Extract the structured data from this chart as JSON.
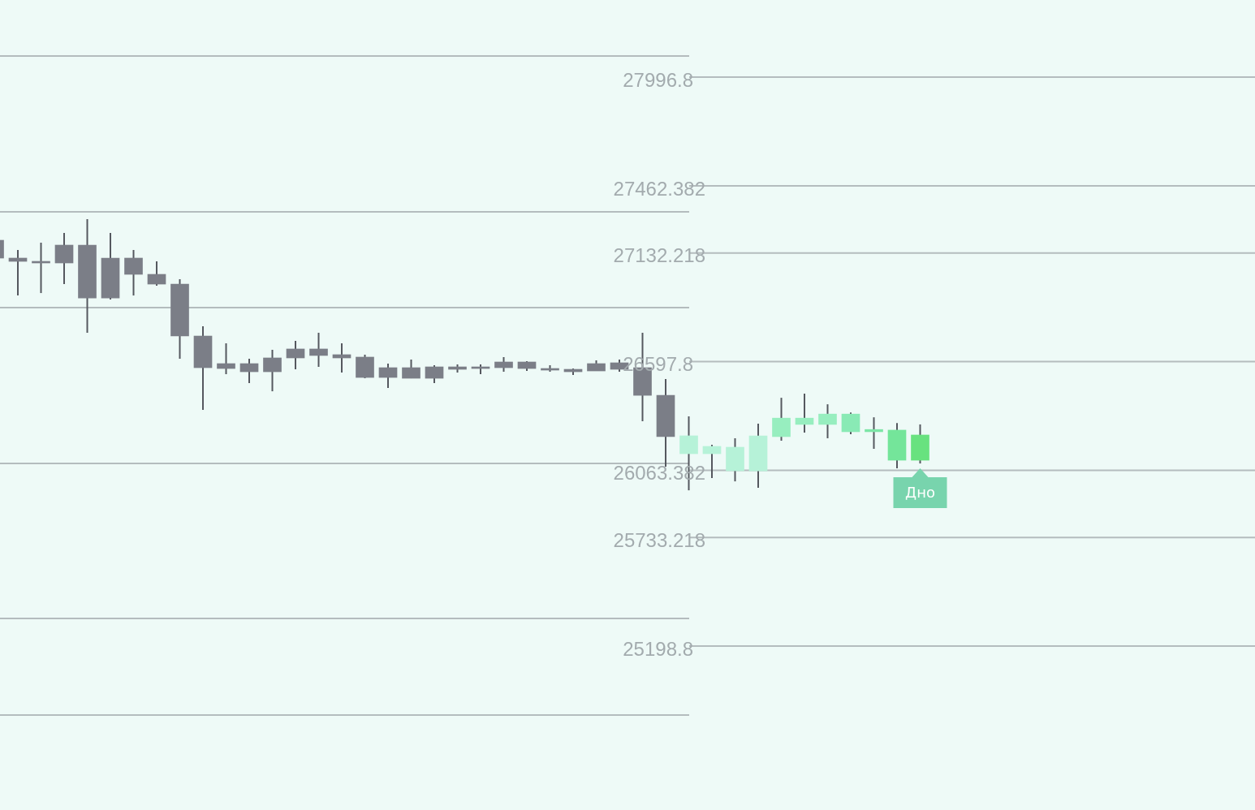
{
  "chart_data": {
    "type": "candlestick",
    "categories": [
      null,
      null,
      null,
      null,
      null,
      null,
      null,
      null,
      null,
      null,
      null,
      null,
      null,
      null,
      null,
      null,
      null,
      null,
      null,
      null,
      null,
      null,
      null,
      null,
      null,
      null,
      null,
      null,
      null,
      null,
      null,
      null,
      null,
      null,
      null,
      null,
      null,
      null,
      null,
      null,
      null
    ],
    "ohlc": [
      [
        27194.6,
        27194.6,
        27106.9,
        27106.9
      ],
      [
        27106.9,
        27146.7,
        26923,
        27090.8
      ],
      [
        27090.8,
        27182.6,
        26935,
        27082.9
      ],
      [
        27170.7,
        27230.5,
        26979,
        27082.9
      ],
      [
        27170.7,
        27298.4,
        26739.6,
        26911
      ],
      [
        27106.9,
        27230.5,
        26903,
        26911
      ],
      [
        27106.9,
        27146.7,
        26923,
        27027
      ],
      [
        27027,
        27090.8,
        26971,
        26979
      ],
      [
        26979,
        27003,
        26611.9,
        26723.6
      ],
      [
        26723.6,
        26771.5,
        26360.5,
        26568
      ],
      [
        26588,
        26687.8,
        26536,
        26564
      ],
      [
        26588,
        26611.9,
        26492,
        26548
      ],
      [
        26616,
        26656,
        26452,
        26548
      ],
      [
        26660,
        26699.7,
        26560,
        26616
      ],
      [
        26660,
        26739.6,
        26572,
        26628
      ],
      [
        26632,
        26687.8,
        26544,
        26616
      ],
      [
        26620,
        26632,
        26516,
        26520
      ],
      [
        26568,
        26588,
        26468,
        26520
      ],
      [
        26568,
        26608,
        26516,
        26516
      ],
      [
        26572,
        26580,
        26492,
        26516
      ],
      [
        26572,
        26584,
        26544,
        26560
      ],
      [
        26572,
        26584,
        26536,
        26564
      ],
      [
        26596,
        26620,
        26548,
        26568
      ],
      [
        26596,
        26600,
        26552,
        26564
      ],
      [
        26564,
        26580,
        26548,
        26556
      ],
      [
        26560,
        26564,
        26532,
        26548
      ],
      [
        26588,
        26604,
        26552,
        26552
      ],
      [
        26592,
        26608,
        26548,
        26560
      ],
      [
        26568,
        26739.6,
        26304.6,
        26432
      ],
      [
        26432,
        26512,
        26081,
        26228.7
      ],
      [
        26233,
        26328.6,
        25965,
        26145
      ],
      [
        26181,
        26189,
        26025,
        26145
      ],
      [
        26177,
        26221,
        26009,
        26061
      ],
      [
        26233,
        26293,
        25977,
        26061
      ],
      [
        26320,
        26420,
        26209,
        26229
      ],
      [
        26320,
        26440,
        26249,
        26289
      ],
      [
        26340,
        26388,
        26221,
        26289
      ],
      [
        26340,
        26348,
        26241,
        26253
      ],
      [
        26264,
        26324,
        26169,
        26253
      ],
      [
        26261,
        26296,
        26073,
        26113
      ],
      [
        26237,
        26289,
        26097,
        26113
      ]
    ],
    "colors": [
      "#7b7e87",
      "#7b7e87",
      "#7b7e87",
      "#7b7e87",
      "#7b7e87",
      "#7b7e87",
      "#7b7e87",
      "#7b7e87",
      "#7b7e87",
      "#7b7e87",
      "#7b7e87",
      "#7b7e87",
      "#7b7e87",
      "#7b7e87",
      "#7b7e87",
      "#7b7e87",
      "#7b7e87",
      "#7b7e87",
      "#7b7e87",
      "#7b7e87",
      "#7b7e87",
      "#7b7e87",
      "#7b7e87",
      "#7b7e87",
      "#7b7e87",
      "#7b7e87",
      "#7b7e87",
      "#7b7e87",
      "#7b7e87",
      "#7b7e87",
      "#b6f2d8",
      "#b6f2d8",
      "#b6f2d8",
      "#b6f2d8",
      "#97eebf",
      "#97eebf",
      "#97eebf",
      "#89eab5",
      "#7de6a7",
      "#74e59a",
      "#68e27f"
    ],
    "ylim": [
      24393,
      28376
    ],
    "ref_lines": [
      {
        "axis": "y",
        "value": 28100.6
      },
      {
        "axis": "y",
        "value": 27334.3
      },
      {
        "axis": "y",
        "value": 26863.4
      },
      {
        "axis": "y",
        "value": 26097
      },
      {
        "axis": "y",
        "value": 25334.6
      },
      {
        "axis": "y",
        "value": 24859.7
      },
      {
        "axis": "y",
        "value": 27996.8,
        "label": "27996.8"
      },
      {
        "axis": "y",
        "value": 27462.382,
        "label": "27462.382"
      },
      {
        "axis": "y",
        "value": 27132.218,
        "label": "27132.218"
      },
      {
        "axis": "y",
        "value": 26597.8,
        "label": "26597.8"
      },
      {
        "axis": "y",
        "value": 26063.382,
        "label": "26063.382"
      },
      {
        "axis": "y",
        "value": 25733.218,
        "label": "25733.218"
      },
      {
        "axis": "y",
        "value": 25198.8,
        "label": "25198.8"
      }
    ],
    "annotations": [
      {
        "text": "Дно",
        "y": 26097
      }
    ]
  }
}
